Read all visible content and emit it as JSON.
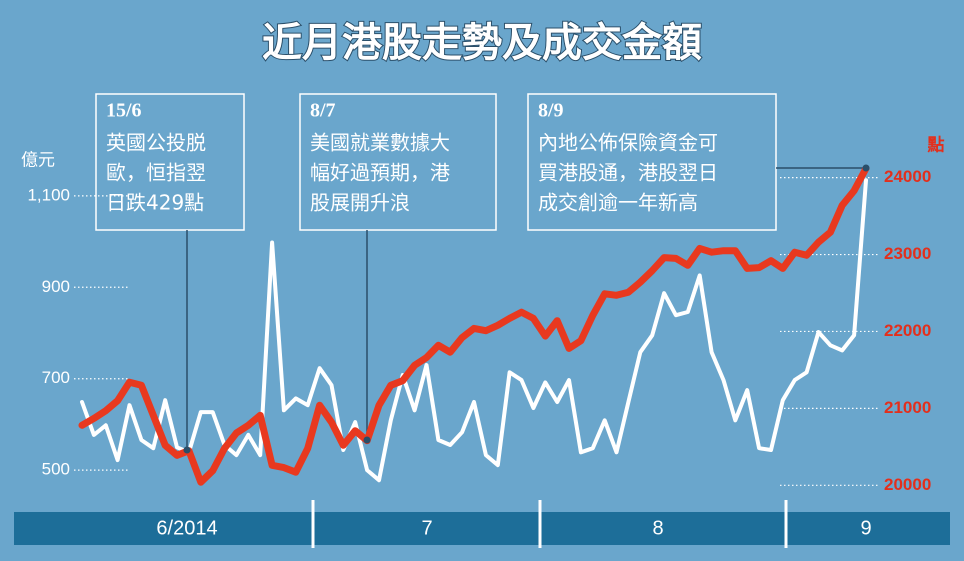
{
  "chart_data": {
    "type": "line",
    "title": "近月港股走勢及成交金額",
    "y_label": "億元",
    "y2_label": "點",
    "months": [
      "6/2014",
      "7",
      "8",
      "9"
    ],
    "categories": [
      null,
      null,
      null,
      null,
      null,
      null,
      null,
      null,
      null,
      null,
      null,
      null,
      null,
      null,
      null,
      null,
      null,
      null,
      null,
      null,
      null,
      null,
      null,
      null,
      null,
      null,
      null,
      null,
      null,
      null,
      null,
      null,
      null,
      null,
      null,
      null,
      null,
      null,
      null,
      null,
      null,
      null,
      null,
      null,
      null,
      null,
      null,
      null,
      null,
      null,
      null,
      null,
      null,
      null,
      null,
      null,
      null,
      null,
      null,
      null,
      null,
      null,
      null,
      null,
      null,
      null,
      null
    ],
    "series": [
      {
        "name": "成交金額",
        "color": "#ffffff",
        "axis": "y",
        "values": [
          649,
          577,
          598,
          522,
          642,
          566,
          548,
          653,
          550,
          539,
          627,
          627,
          555,
          533,
          577,
          533,
          998,
          631,
          657,
          642,
          723,
          686,
          544,
          605,
          500,
          478,
          609,
          708,
          631,
          730,
          566,
          555,
          583,
          649,
          533,
          511,
          714,
          697,
          636,
          692,
          649,
          697,
          539,
          548,
          609,
          539,
          649,
          758,
          795,
          887,
          839,
          846,
          926,
          758,
          697,
          609,
          675,
          548,
          544,
          653,
          697,
          714,
          802,
          773,
          762,
          795,
          1134
        ]
      },
      {
        "name": "恒指",
        "color": "#e8391f",
        "axis": "y2",
        "values": [
          20780,
          20870,
          20970,
          21100,
          21340,
          21300,
          20910,
          20520,
          20390,
          20450,
          20040,
          20190,
          20480,
          20680,
          20780,
          20910,
          20260,
          20230,
          20170,
          20480,
          21040,
          20820,
          20520,
          20710,
          20580,
          21040,
          21300,
          21360,
          21560,
          21660,
          21820,
          21730,
          21920,
          22040,
          22010,
          22080,
          22170,
          22250,
          22170,
          21940,
          22140,
          21780,
          21880,
          22210,
          22490,
          22470,
          22510,
          22640,
          22790,
          22960,
          22950,
          22860,
          23080,
          23030,
          23050,
          23050,
          22820,
          22830,
          22920,
          22820,
          23030,
          22990,
          23160,
          23290,
          23640,
          23830,
          24120
        ]
      }
    ],
    "ylim": [
      450,
      1150
    ],
    "yticks": [
      500,
      700,
      900,
      {
        "value": 1100,
        "label": "1,100"
      }
    ],
    "y2lim": [
      19900,
      24060
    ],
    "y2ticks": [
      20000,
      21000,
      22000,
      23000,
      24000
    ],
    "grid": true,
    "annotations": [
      {
        "date": "15/6",
        "lines": [
          "英國公投脱",
          "歐，恒指翌",
          "日跌429點"
        ]
      },
      {
        "date": "8/7",
        "lines": [
          "美國就業數據大",
          "幅好過預期，港",
          "股展開升浪"
        ]
      },
      {
        "date": "8/9",
        "lines": [
          "內地公佈保險資金可",
          "買港股通，港股翌日",
          "成交創逾一年新高"
        ]
      }
    ]
  }
}
